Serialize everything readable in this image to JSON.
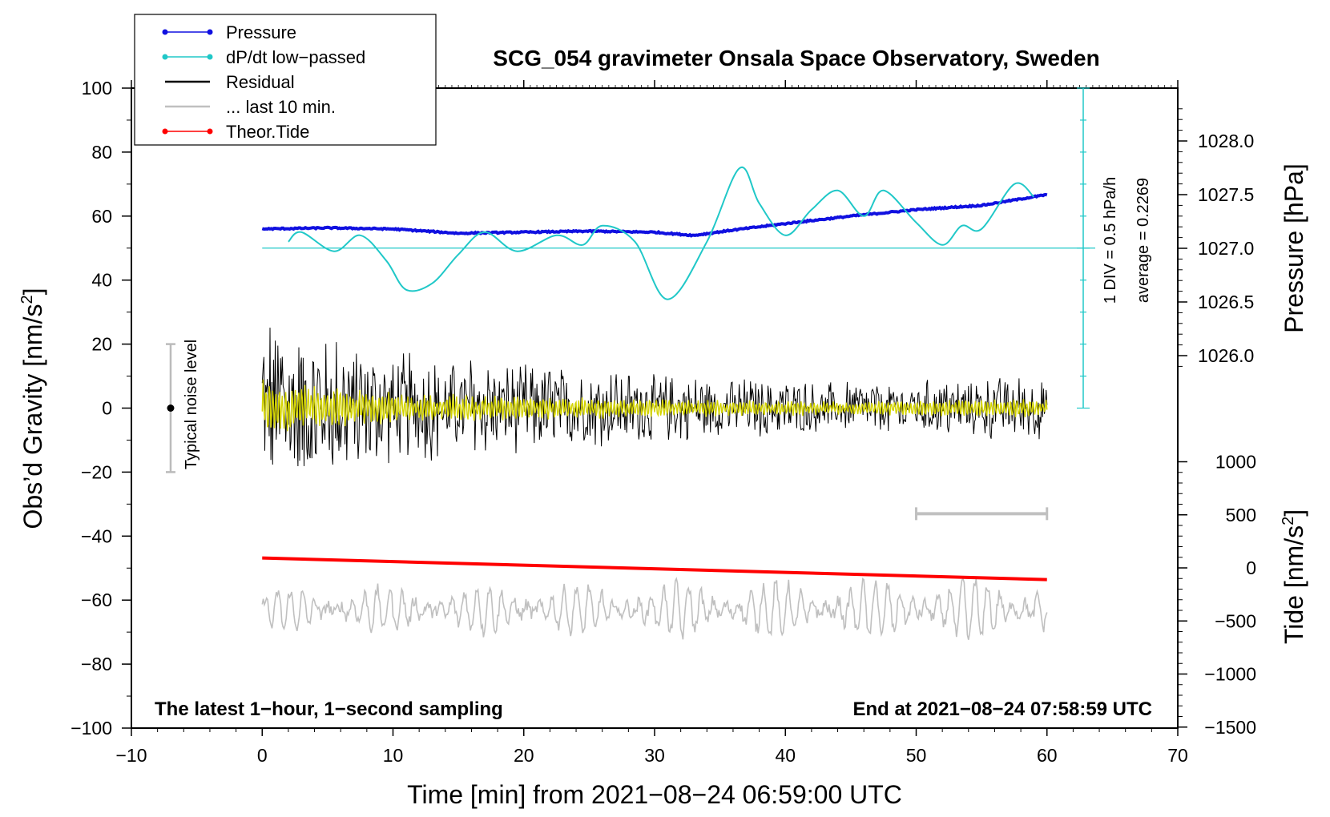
{
  "chart_data": {
    "type": "line",
    "title": "SCG_054 gravimeter Onsala Space Observatory, Sweden",
    "xlabel": "Time [min] from 2021−08−24 06:59:00 UTC",
    "ylabel_left": "Obs’d Gravity [nm/s",
    "ylabel_left_sup": "2",
    "ylabel_left_close": "]",
    "ylabel_right_top": "Pressure [hPa]",
    "ylabel_right_bottom": "Tide [nm/s",
    "ylabel_right_bottom_sup": "2",
    "ylabel_right_bottom_close": "]",
    "xlim": [
      -10,
      70
    ],
    "ylim": [
      -100,
      100
    ],
    "x_ticks": [
      "−10",
      "0",
      "10",
      "20",
      "30",
      "40",
      "50",
      "60",
      "70"
    ],
    "y_ticks": [
      "100",
      "80",
      "60",
      "40",
      "20",
      "0",
      "−20",
      "−40",
      "−60",
      "−80",
      "−100"
    ],
    "pressure_ticks": [
      "1028.0",
      "1027.5",
      "1027.0",
      "1026.5",
      "1026.0"
    ],
    "tide_ticks": [
      "1000",
      "500",
      "0",
      "−500",
      "−1000",
      "−1500"
    ],
    "bottom_left_note": "The latest 1−hour, 1−second sampling",
    "bottom_right_note": "End at 2021−08−24 07:58:59 UTC",
    "dpdt_scale": "1 DIV = 0.5 hPa/h",
    "dpdt_average": "average = 0.2269",
    "noise_label": "Typical noise level",
    "legend": [
      {
        "label": "Pressure",
        "color": "#1010e0",
        "marker": true
      },
      {
        "label": "dP/dt low−passed",
        "color": "#20c8c8",
        "marker": true
      },
      {
        "label": "Residual",
        "color": "#000000",
        "marker": false
      },
      {
        "label": "... last 10 min.",
        "color": "#c0c0c0",
        "marker": false
      },
      {
        "label": "Theor.Tide",
        "color": "#ff0000",
        "marker": true
      }
    ],
    "series": [
      {
        "name": "Pressure",
        "color": "#1010e0",
        "unit": "hPa",
        "x": [
          0,
          5,
          10,
          15,
          20,
          25,
          30,
          33,
          36,
          40,
          45,
          50,
          55,
          60
        ],
        "values": [
          1027.18,
          1027.19,
          1027.18,
          1027.14,
          1027.15,
          1027.16,
          1027.15,
          1027.12,
          1027.17,
          1027.23,
          1027.3,
          1027.36,
          1027.4,
          1027.5
        ]
      },
      {
        "name": "dP/dt low-passed",
        "color": "#20c8c8",
        "unit": "nm/s2 axis",
        "x": [
          2,
          3,
          5.5,
          7.5,
          9.5,
          11,
          13,
          15,
          17,
          19.5,
          22.5,
          24.5,
          26,
          28.5,
          31,
          34,
          36.5,
          38,
          40,
          42,
          44,
          46,
          47.5,
          50,
          52,
          53.5,
          55,
          57.5,
          59
        ],
        "values": [
          52,
          55,
          49,
          54,
          46,
          37,
          39,
          48,
          55,
          49,
          54,
          51,
          57,
          52,
          34,
          52,
          75,
          64,
          54,
          62,
          68,
          60,
          68,
          58,
          51,
          57,
          56,
          70,
          66
        ]
      },
      {
        "name": "Residual",
        "color": "#000000",
        "unit": "nm/s2",
        "x": [
          0,
          3,
          6,
          10,
          20,
          30,
          40,
          50,
          60
        ],
        "amplitude": [
          18,
          16,
          13,
          10,
          8,
          6,
          5,
          5,
          6
        ]
      },
      {
        "name": "Theor.Tide",
        "color": "#ff0000",
        "unit": "nm/s2 tide axis",
        "x": [
          0,
          60
        ],
        "values": [
          93,
          -110
        ]
      },
      {
        "name": "... last 10 min.",
        "color": "#c0c0c0",
        "unit": "nm/s2",
        "x": [
          0,
          60
        ],
        "amplitude": [
          6,
          10
        ],
        "center": -63
      }
    ]
  }
}
